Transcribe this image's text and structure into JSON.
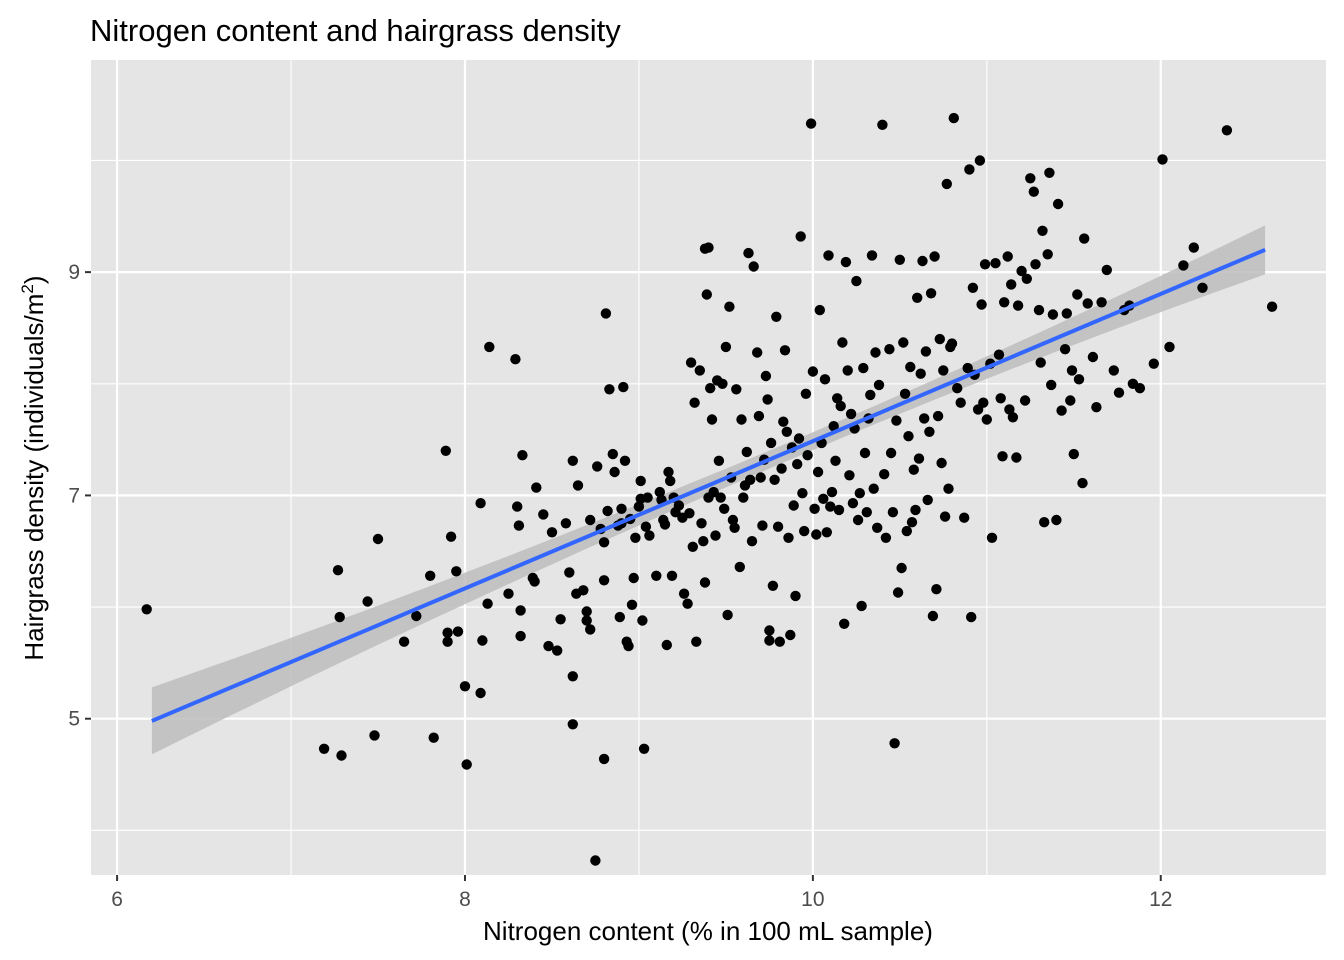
{
  "chart_data": {
    "type": "scatter",
    "title": "Nitrogen content and hairgrass density",
    "xlabel": "Nitrogen content (% in 100 mL sample)",
    "ylabel": "Hairgrass density (individuals/m",
    "ylabel_superscript": "2",
    "ylabel_close": ")",
    "xlim": [
      5.85,
      12.95
    ],
    "ylim": [
      3.6,
      10.9
    ],
    "x_ticks": [
      6,
      8,
      10,
      12
    ],
    "y_ticks": [
      5,
      7,
      9
    ],
    "x_ticks_labels": [
      "6",
      "8",
      "10",
      "12"
    ],
    "y_ticks_labels": [
      "5",
      "7",
      "9"
    ],
    "x_minor_gridlines": [
      7,
      9,
      11
    ],
    "y_minor_gridlines": [
      4,
      6,
      8,
      10
    ],
    "grid": true,
    "panel_background": "#e5e5e5",
    "grid_color": "#ffffff",
    "point_color": "#000000",
    "fit_line": {
      "method": "linear",
      "color": "#3366ff",
      "band_color": "#bdbdbd",
      "x_start": 6.2,
      "x_end": 12.6,
      "y_start": 4.98,
      "y_end": 9.2,
      "ci_at_start": 0.3,
      "ci_at_center": 0.08,
      "ci_at_end": 0.22,
      "x_center": 10
    },
    "points": [
      [
        6.17,
        5.98
      ],
      [
        7.19,
        4.73
      ],
      [
        7.27,
        6.33
      ],
      [
        7.28,
        5.91
      ],
      [
        7.29,
        4.67
      ],
      [
        7.44,
        6.05
      ],
      [
        7.48,
        4.85
      ],
      [
        7.5,
        6.61
      ],
      [
        7.65,
        5.69
      ],
      [
        7.72,
        5.92
      ],
      [
        7.8,
        6.28
      ],
      [
        7.82,
        4.83
      ],
      [
        7.89,
        7.4
      ],
      [
        7.9,
        5.77
      ],
      [
        7.9,
        5.69
      ],
      [
        7.92,
        6.63
      ],
      [
        7.95,
        6.32
      ],
      [
        7.96,
        5.78
      ],
      [
        8.0,
        5.29
      ],
      [
        8.01,
        4.59
      ],
      [
        8.09,
        5.23
      ],
      [
        8.09,
        6.93
      ],
      [
        8.1,
        5.7
      ],
      [
        8.13,
        6.03
      ],
      [
        8.14,
        8.33
      ],
      [
        8.25,
        6.12
      ],
      [
        8.29,
        8.22
      ],
      [
        8.3,
        6.9
      ],
      [
        8.31,
        6.73
      ],
      [
        8.32,
        5.74
      ],
      [
        8.32,
        5.97
      ],
      [
        8.33,
        7.36
      ],
      [
        8.39,
        6.26
      ],
      [
        8.4,
        6.23
      ],
      [
        8.41,
        7.07
      ],
      [
        8.45,
        6.83
      ],
      [
        8.48,
        5.65
      ],
      [
        8.5,
        6.67
      ],
      [
        8.53,
        5.61
      ],
      [
        8.55,
        5.89
      ],
      [
        8.58,
        6.75
      ],
      [
        8.6,
        6.31
      ],
      [
        8.62,
        7.31
      ],
      [
        8.62,
        5.38
      ],
      [
        8.62,
        4.95
      ],
      [
        8.64,
        6.12
      ],
      [
        8.65,
        7.09
      ],
      [
        8.68,
        6.15
      ],
      [
        8.7,
        5.96
      ],
      [
        8.7,
        5.88
      ],
      [
        8.72,
        6.78
      ],
      [
        8.72,
        5.8
      ],
      [
        8.75,
        3.73
      ],
      [
        8.76,
        7.26
      ],
      [
        8.78,
        6.7
      ],
      [
        8.8,
        6.58
      ],
      [
        8.8,
        6.24
      ],
      [
        8.8,
        4.64
      ],
      [
        8.81,
        8.63
      ],
      [
        8.82,
        6.86
      ],
      [
        8.83,
        7.95
      ],
      [
        8.85,
        7.37
      ],
      [
        8.86,
        7.21
      ],
      [
        8.88,
        6.73
      ],
      [
        8.89,
        5.91
      ],
      [
        8.9,
        6.88
      ],
      [
        8.9,
        6.75
      ],
      [
        8.91,
        7.97
      ],
      [
        8.92,
        7.31
      ],
      [
        8.93,
        5.69
      ],
      [
        8.94,
        5.65
      ],
      [
        8.95,
        6.79
      ],
      [
        8.96,
        6.02
      ],
      [
        8.97,
        6.26
      ],
      [
        8.98,
        6.62
      ],
      [
        9.0,
        6.9
      ],
      [
        9.01,
        7.13
      ],
      [
        9.01,
        6.97
      ],
      [
        9.02,
        5.88
      ],
      [
        9.03,
        4.73
      ],
      [
        9.04,
        6.72
      ],
      [
        9.05,
        6.98
      ],
      [
        9.06,
        6.64
      ],
      [
        9.1,
        6.28
      ],
      [
        9.12,
        7.03
      ],
      [
        9.13,
        6.96
      ],
      [
        9.14,
        6.78
      ],
      [
        9.15,
        6.74
      ],
      [
        9.16,
        5.66
      ],
      [
        9.17,
        7.21
      ],
      [
        9.18,
        7.13
      ],
      [
        9.19,
        6.28
      ],
      [
        9.2,
        6.98
      ],
      [
        9.21,
        6.85
      ],
      [
        9.23,
        6.91
      ],
      [
        9.25,
        6.8
      ],
      [
        9.26,
        6.12
      ],
      [
        9.28,
        6.03
      ],
      [
        9.29,
        6.84
      ],
      [
        9.3,
        8.19
      ],
      [
        9.31,
        6.54
      ],
      [
        9.32,
        7.83
      ],
      [
        9.33,
        5.69
      ],
      [
        9.35,
        8.12
      ],
      [
        9.36,
        6.75
      ],
      [
        9.37,
        6.59
      ],
      [
        9.38,
        6.22
      ],
      [
        9.38,
        9.21
      ],
      [
        9.39,
        8.8
      ],
      [
        9.4,
        9.22
      ],
      [
        9.4,
        6.98
      ],
      [
        9.41,
        7.96
      ],
      [
        9.42,
        7.68
      ],
      [
        9.43,
        7.03
      ],
      [
        9.44,
        6.64
      ],
      [
        9.45,
        8.03
      ],
      [
        9.46,
        7.31
      ],
      [
        9.47,
        6.98
      ],
      [
        9.48,
        8.0
      ],
      [
        9.49,
        6.88
      ],
      [
        9.5,
        8.33
      ],
      [
        9.51,
        5.93
      ],
      [
        9.52,
        8.69
      ],
      [
        9.53,
        7.16
      ],
      [
        9.54,
        6.78
      ],
      [
        9.55,
        6.71
      ],
      [
        9.56,
        7.95
      ],
      [
        9.58,
        6.36
      ],
      [
        9.59,
        7.68
      ],
      [
        9.6,
        6.98
      ],
      [
        9.61,
        7.09
      ],
      [
        9.62,
        7.39
      ],
      [
        9.63,
        9.17
      ],
      [
        9.64,
        7.14
      ],
      [
        9.65,
        6.59
      ],
      [
        9.66,
        9.05
      ],
      [
        9.68,
        8.28
      ],
      [
        9.69,
        7.71
      ],
      [
        9.7,
        7.16
      ],
      [
        9.71,
        6.73
      ],
      [
        9.72,
        7.32
      ],
      [
        9.73,
        8.07
      ],
      [
        9.74,
        7.86
      ],
      [
        9.75,
        5.79
      ],
      [
        9.75,
        5.7
      ],
      [
        9.76,
        7.47
      ],
      [
        9.77,
        6.19
      ],
      [
        9.78,
        7.14
      ],
      [
        9.79,
        8.6
      ],
      [
        9.8,
        6.72
      ],
      [
        9.81,
        5.69
      ],
      [
        9.82,
        7.24
      ],
      [
        9.83,
        7.66
      ],
      [
        9.84,
        8.3
      ],
      [
        9.85,
        7.57
      ],
      [
        9.86,
        6.62
      ],
      [
        9.87,
        5.75
      ],
      [
        9.88,
        7.43
      ],
      [
        9.89,
        6.91
      ],
      [
        9.9,
        6.1
      ],
      [
        9.91,
        7.28
      ],
      [
        9.92,
        7.51
      ],
      [
        9.93,
        9.32
      ],
      [
        9.94,
        7.02
      ],
      [
        9.95,
        6.68
      ],
      [
        9.96,
        7.91
      ],
      [
        9.97,
        7.36
      ],
      [
        9.99,
        10.33
      ],
      [
        10.0,
        8.11
      ],
      [
        10.01,
        6.88
      ],
      [
        10.02,
        6.65
      ],
      [
        10.03,
        7.21
      ],
      [
        10.04,
        8.66
      ],
      [
        10.05,
        7.47
      ],
      [
        10.06,
        6.97
      ],
      [
        10.07,
        8.04
      ],
      [
        10.08,
        6.67
      ],
      [
        10.09,
        9.15
      ],
      [
        10.1,
        6.9
      ],
      [
        10.11,
        7.03
      ],
      [
        10.12,
        7.62
      ],
      [
        10.13,
        7.31
      ],
      [
        10.14,
        7.87
      ],
      [
        10.15,
        6.87
      ],
      [
        10.16,
        7.8
      ],
      [
        10.17,
        8.37
      ],
      [
        10.18,
        5.85
      ],
      [
        10.19,
        9.09
      ],
      [
        10.2,
        8.12
      ],
      [
        10.21,
        7.18
      ],
      [
        10.22,
        7.73
      ],
      [
        10.23,
        6.93
      ],
      [
        10.24,
        7.6
      ],
      [
        10.25,
        8.92
      ],
      [
        10.26,
        6.78
      ],
      [
        10.27,
        7.02
      ],
      [
        10.28,
        6.01
      ],
      [
        10.29,
        8.14
      ],
      [
        10.3,
        7.38
      ],
      [
        10.31,
        6.85
      ],
      [
        10.32,
        7.69
      ],
      [
        10.33,
        7.9
      ],
      [
        10.34,
        9.15
      ],
      [
        10.35,
        7.06
      ],
      [
        10.36,
        8.28
      ],
      [
        10.37,
        6.71
      ],
      [
        10.38,
        7.99
      ],
      [
        10.4,
        10.32
      ],
      [
        10.41,
        7.19
      ],
      [
        10.42,
        6.62
      ],
      [
        10.44,
        8.31
      ],
      [
        10.45,
        7.38
      ],
      [
        10.46,
        6.85
      ],
      [
        10.47,
        4.78
      ],
      [
        10.48,
        7.67
      ],
      [
        10.49,
        6.13
      ],
      [
        10.5,
        9.11
      ],
      [
        10.51,
        6.35
      ],
      [
        10.52,
        8.37
      ],
      [
        10.53,
        7.91
      ],
      [
        10.54,
        6.68
      ],
      [
        10.55,
        7.53
      ],
      [
        10.56,
        8.15
      ],
      [
        10.57,
        6.76
      ],
      [
        10.58,
        7.23
      ],
      [
        10.59,
        6.87
      ],
      [
        10.6,
        8.77
      ],
      [
        10.61,
        7.33
      ],
      [
        10.62,
        8.09
      ],
      [
        10.63,
        9.1
      ],
      [
        10.64,
        7.69
      ],
      [
        10.65,
        8.29
      ],
      [
        10.66,
        6.96
      ],
      [
        10.67,
        7.57
      ],
      [
        10.68,
        8.81
      ],
      [
        10.69,
        5.92
      ],
      [
        10.7,
        9.14
      ],
      [
        10.71,
        6.16
      ],
      [
        10.72,
        7.71
      ],
      [
        10.73,
        8.4
      ],
      [
        10.74,
        7.29
      ],
      [
        10.75,
        8.12
      ],
      [
        10.76,
        6.81
      ],
      [
        10.77,
        9.79
      ],
      [
        10.78,
        7.06
      ],
      [
        10.79,
        8.33
      ],
      [
        10.8,
        8.36
      ],
      [
        10.81,
        10.38
      ],
      [
        10.83,
        7.96
      ],
      [
        10.85,
        7.83
      ],
      [
        10.87,
        6.8
      ],
      [
        10.89,
        8.14
      ],
      [
        10.9,
        9.92
      ],
      [
        10.91,
        5.91
      ],
      [
        10.92,
        8.86
      ],
      [
        10.93,
        8.08
      ],
      [
        10.95,
        7.77
      ],
      [
        10.96,
        10.0
      ],
      [
        10.97,
        8.71
      ],
      [
        10.98,
        7.83
      ],
      [
        10.99,
        9.07
      ],
      [
        11.0,
        7.68
      ],
      [
        11.02,
        8.18
      ],
      [
        11.03,
        6.62
      ],
      [
        11.05,
        9.08
      ],
      [
        11.07,
        8.26
      ],
      [
        11.08,
        7.87
      ],
      [
        11.09,
        7.35
      ],
      [
        11.1,
        8.73
      ],
      [
        11.12,
        9.14
      ],
      [
        11.13,
        7.77
      ],
      [
        11.14,
        8.89
      ],
      [
        11.15,
        7.7
      ],
      [
        11.17,
        7.34
      ],
      [
        11.18,
        8.7
      ],
      [
        11.2,
        9.01
      ],
      [
        11.22,
        7.85
      ],
      [
        11.23,
        8.94
      ],
      [
        11.25,
        9.84
      ],
      [
        11.27,
        9.72
      ],
      [
        11.28,
        9.07
      ],
      [
        11.3,
        8.66
      ],
      [
        11.31,
        8.19
      ],
      [
        11.32,
        9.37
      ],
      [
        11.33,
        6.76
      ],
      [
        11.35,
        9.16
      ],
      [
        11.36,
        9.89
      ],
      [
        11.37,
        7.99
      ],
      [
        11.38,
        8.62
      ],
      [
        11.4,
        6.78
      ],
      [
        11.41,
        9.61
      ],
      [
        11.43,
        7.76
      ],
      [
        11.45,
        8.31
      ],
      [
        11.46,
        8.63
      ],
      [
        11.48,
        7.85
      ],
      [
        11.49,
        8.12
      ],
      [
        11.5,
        7.37
      ],
      [
        11.52,
        8.8
      ],
      [
        11.53,
        8.04
      ],
      [
        11.55,
        7.11
      ],
      [
        11.56,
        9.3
      ],
      [
        11.58,
        8.72
      ],
      [
        11.61,
        8.24
      ],
      [
        11.63,
        7.79
      ],
      [
        11.66,
        8.73
      ],
      [
        11.69,
        9.02
      ],
      [
        11.73,
        8.12
      ],
      [
        11.76,
        7.92
      ],
      [
        11.79,
        8.66
      ],
      [
        11.82,
        8.7
      ],
      [
        11.84,
        8.0
      ],
      [
        11.88,
        7.96
      ],
      [
        11.96,
        8.18
      ],
      [
        12.01,
        10.01
      ],
      [
        12.05,
        8.33
      ],
      [
        12.13,
        9.06
      ],
      [
        12.19,
        9.22
      ],
      [
        12.24,
        8.86
      ],
      [
        12.38,
        10.27
      ],
      [
        12.64,
        8.69
      ]
    ]
  }
}
